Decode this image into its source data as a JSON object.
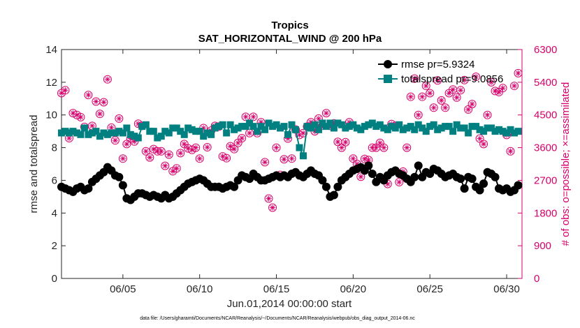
{
  "chart_data": {
    "type": "line",
    "title": "Tropics",
    "subtitle": "SAT_HORIZONTAL_WIND @ 200 hPa",
    "xlabel": "Jun.01,2014 00:00:00 start",
    "ylabel": "rmse and totalspread",
    "ylabel_right": "# of obs: o=possible; ×=assimilated",
    "footnote": "data file: /Users/gharamti/Documents/NCAR/Reanalysis/~/Documents/NCAR/Reanalysis/webpub/obs_diag_output_2014-06.nc",
    "xlim": [
      1,
      31
    ],
    "ylim": [
      0,
      14
    ],
    "ylim_right": [
      0,
      6300
    ],
    "xticks": [
      5,
      10,
      15,
      20,
      25,
      30
    ],
    "xtick_labels": [
      "06/05",
      "06/10",
      "06/15",
      "06/20",
      "06/25",
      "06/30"
    ],
    "yticks": [
      "0",
      "2",
      "4",
      "6",
      "8",
      "10",
      "12",
      "14"
    ],
    "yticks_right": [
      "0",
      "900",
      "1800",
      "2700",
      "3600",
      "4500",
      "5400",
      "6300"
    ],
    "colors": {
      "rmse": "#000000",
      "totalspread": "#008080",
      "obs": "#d6006b",
      "right_axis": "#d6006b"
    },
    "series": [
      {
        "name": "rmse pr=5.9324",
        "marker": "circle",
        "x": [
          1.0,
          1.25,
          1.5,
          1.75,
          2.0,
          2.25,
          2.5,
          2.75,
          3.0,
          3.25,
          3.5,
          3.75,
          4.0,
          4.25,
          4.5,
          4.75,
          5.0,
          5.25,
          5.5,
          5.75,
          6.0,
          6.25,
          6.5,
          6.75,
          7.0,
          7.25,
          7.5,
          7.75,
          8.0,
          8.25,
          8.5,
          8.75,
          9.0,
          9.25,
          9.5,
          9.75,
          10.0,
          10.25,
          10.5,
          10.75,
          11.0,
          11.25,
          11.5,
          11.75,
          12.0,
          12.25,
          12.5,
          12.75,
          13.0,
          13.25,
          13.5,
          13.75,
          14.0,
          14.25,
          14.5,
          14.75,
          15.0,
          15.25,
          15.5,
          15.75,
          16.0,
          16.25,
          16.5,
          16.75,
          17.0,
          17.25,
          17.5,
          17.75,
          18.0,
          18.25,
          18.5,
          18.75,
          19.0,
          19.25,
          19.5,
          19.75,
          20.0,
          20.25,
          20.5,
          20.75,
          21.0,
          21.25,
          21.5,
          21.75,
          22.0,
          22.25,
          22.5,
          22.75,
          23.0,
          23.25,
          23.5,
          23.75,
          24.0,
          24.25,
          24.5,
          24.75,
          25.0,
          25.25,
          25.5,
          25.75,
          26.0,
          26.25,
          26.5,
          26.75,
          27.0,
          27.25,
          27.5,
          27.75,
          28.0,
          28.25,
          28.5,
          28.75,
          29.0,
          29.25,
          29.5,
          29.75,
          30.0,
          30.25,
          30.5,
          30.75
        ],
        "values": [
          5.6,
          5.5,
          5.4,
          5.3,
          5.5,
          5.6,
          5.4,
          5.5,
          5.9,
          6.1,
          6.3,
          6.5,
          6.8,
          6.6,
          6.3,
          6.2,
          5.7,
          4.9,
          4.8,
          5.0,
          5.2,
          5.2,
          5.1,
          5.0,
          5.1,
          5.0,
          4.9,
          5.1,
          4.9,
          5.0,
          5.2,
          5.4,
          5.6,
          5.8,
          5.9,
          6.0,
          6.1,
          6.0,
          5.8,
          5.6,
          5.6,
          5.6,
          5.5,
          5.6,
          5.7,
          5.6,
          6.0,
          6.3,
          6.2,
          6.1,
          6.4,
          6.2,
          6.0,
          6.0,
          6.1,
          6.2,
          6.3,
          6.2,
          6.3,
          6.2,
          6.4,
          6.5,
          6.3,
          6.2,
          6.4,
          6.6,
          6.4,
          6.3,
          6.0,
          5.6,
          5.0,
          5.1,
          5.6,
          6.0,
          6.2,
          6.4,
          6.6,
          6.7,
          6.8,
          6.6,
          6.9,
          6.4,
          5.9,
          6.2,
          6.0,
          6.3,
          6.5,
          6.6,
          6.4,
          6.3,
          6.1,
          5.9,
          6.2,
          6.9,
          6.2,
          6.5,
          6.4,
          6.7,
          6.6,
          6.4,
          6.2,
          6.3,
          6.4,
          6.2,
          6.1,
          5.5,
          6.2,
          6.1,
          5.6,
          5.4,
          5.8,
          6.5,
          6.4,
          6.2,
          5.5,
          5.4,
          5.5,
          5.3,
          5.4,
          5.7
        ],
        "values_note": "daily time series (approximate)"
      },
      {
        "name": "totalspread pr=9.0856",
        "marker": "square",
        "values": [
          8.9,
          9.0,
          8.9,
          9.0,
          8.9,
          8.8,
          9.2,
          8.8,
          8.9,
          9.0,
          8.7,
          8.9,
          8.8,
          8.9,
          8.9,
          9.0,
          8.9,
          9.2,
          8.8,
          8.7,
          8.6,
          9.3,
          9.4,
          9.0,
          9.0,
          8.6,
          8.7,
          9.0,
          8.9,
          9.2,
          9.2,
          9.0,
          8.8,
          9.2,
          9.1,
          9.0,
          9.0,
          8.7,
          8.9,
          8.8,
          9.2,
          9.3,
          9.4,
          8.9,
          9.4,
          9.1,
          9.2,
          9.3,
          9.3,
          9.5,
          9.3,
          9.0,
          9.3,
          9.1,
          9.5,
          9.3,
          9.4,
          9.2,
          9.3,
          8.8,
          9.4,
          9.1,
          8.0,
          7.5,
          9.3,
          9.2,
          9.4,
          9.1,
          9.5,
          9.3,
          9.5,
          9.2,
          9.5,
          9.4,
          9.2,
          9.3,
          9.4,
          9.2,
          9.1,
          9.3,
          9.4,
          9.5,
          9.3,
          9.4,
          9.2,
          9.1,
          9.3,
          9.2,
          9.4,
          9.1,
          9.2,
          9.3,
          9.1,
          9.4,
          9.2,
          9.0,
          9.3,
          9.4,
          9.1,
          9.2,
          9.3,
          9.3,
          9.0,
          9.4,
          9.2,
          9.2,
          8.9,
          9.3,
          9.3,
          9.1,
          9.0,
          9.2,
          9.2,
          9.0,
          9.1,
          9.0,
          8.9,
          9.1,
          8.9,
          9.0
        ]
      },
      {
        "name": "# of obs (possible/assimilated)",
        "axis": "right",
        "marker": "circle-asterisk",
        "values": [
          5100,
          5180,
          3860,
          4550,
          4500,
          4440,
          4170,
          5050,
          4200,
          4870,
          4530,
          4850,
          5480,
          4150,
          3800,
          4400,
          3300,
          3700,
          3850,
          3770,
          4260,
          4200,
          3500,
          3330,
          3560,
          3500,
          3500,
          3100,
          3410,
          2950,
          3030,
          3450,
          3700,
          3580,
          3540,
          3600,
          3300,
          4140,
          3610,
          4070,
          4200,
          4180,
          3360,
          3310,
          3640,
          3560,
          3730,
          3860,
          4450,
          4000,
          4450,
          4000,
          4300,
          3200,
          2200,
          1950,
          3600,
          2850,
          3280,
          3850,
          3300,
          4100,
          3950,
          4000,
          4180,
          4300,
          4050,
          4400,
          4210,
          4550,
          4200,
          4270,
          3760,
          3600,
          3750,
          4300,
          3300,
          3150,
          2800,
          3290,
          3260,
          3600,
          3600,
          3730,
          3600,
          2600,
          4250,
          4200,
          2650,
          2940,
          3600,
          5000,
          5500,
          4500,
          5000,
          5300,
          5100,
          4700,
          5450,
          4900,
          4700,
          5100,
          5200,
          4980,
          5180,
          5460,
          4650,
          4800,
          5550,
          3850,
          3700,
          4500,
          5400,
          5160,
          5130,
          5240,
          3950,
          3500,
          5300,
          5650,
          3800,
          3600,
          5700,
          5250,
          3750,
          3800
        ]
      }
    ]
  }
}
